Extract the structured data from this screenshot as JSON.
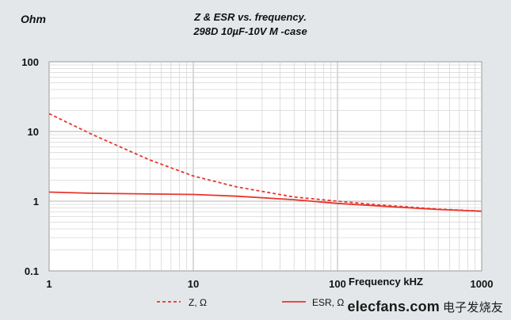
{
  "chart_data": {
    "type": "line",
    "title": "Z & ESR vs. frequency.",
    "subtitle": "298D 10µF-10V M -case",
    "ylabel": "Ohm",
    "xlabel": "Frequency kHZ",
    "xscale": "log",
    "yscale": "log",
    "xlim": [
      1,
      1000
    ],
    "ylim": [
      0.1,
      100
    ],
    "xticks": [
      "1",
      "10",
      "100",
      "1000"
    ],
    "yticks": [
      "100",
      "10",
      "1",
      "0.1"
    ],
    "grid": true,
    "legend_position": "bottom",
    "series": [
      {
        "name": "Z, Ω",
        "style": "dashed",
        "color": "#e8362e",
        "x": [
          1,
          2,
          5,
          10,
          20,
          50,
          100,
          200,
          500,
          1000
        ],
        "y": [
          18,
          9,
          3.9,
          2.3,
          1.6,
          1.15,
          1.0,
          0.88,
          0.77,
          0.72
        ]
      },
      {
        "name": "ESR, Ω",
        "style": "solid",
        "color": "#e8362e",
        "x": [
          1,
          2,
          5,
          10,
          20,
          50,
          100,
          200,
          500,
          1000
        ],
        "y": [
          1.35,
          1.3,
          1.27,
          1.25,
          1.18,
          1.05,
          0.93,
          0.85,
          0.76,
          0.72
        ]
      }
    ]
  },
  "watermark": {
    "site": "elecfans",
    "domain": ".com",
    "cn": "电子发烧友"
  }
}
